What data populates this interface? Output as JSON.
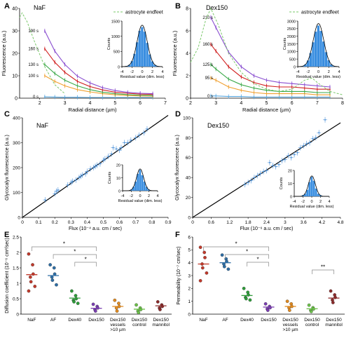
{
  "figure": {
    "panels": [
      {
        "letter": "A",
        "name": "NaF"
      },
      {
        "letter": "B",
        "name": "Dex150"
      },
      {
        "letter": "C",
        "name": "NaF"
      },
      {
        "letter": "D",
        "name": "Dex150"
      },
      {
        "letter": "E",
        "name": ""
      },
      {
        "letter": "F",
        "name": ""
      }
    ]
  },
  "colors": {
    "t0": "#5aa8e0",
    "t1": "#f0a030",
    "t2": "#3aa848",
    "t3": "#d02020",
    "t4": "#8a4fd0",
    "endfeet": "#7ac86a",
    "hist": "#3a8ee0",
    "fit": "#000000",
    "points": "#4a90d8"
  },
  "chart_data": [
    {
      "type": "line",
      "panel": "A",
      "title": "NaF",
      "xlabel": "Radial distance (µm)",
      "ylabel": "Fluorescence (a.u.)",
      "xlim": [
        1.2,
        7
      ],
      "ylim": [
        0,
        40
      ],
      "xticks": [
        2,
        3,
        4,
        5,
        6,
        7
      ],
      "yticks": [
        0,
        10,
        20,
        30,
        40
      ],
      "legend": "astrocyte endfeet",
      "legend_position": "top-right",
      "series": [
        {
          "name": "0 s",
          "x": [
            2.2,
            2.6,
            3.0,
            3.5,
            4.0,
            4.5,
            5.0,
            5.5,
            6.0,
            6.5
          ],
          "y": [
            0.6,
            0.5,
            0.4,
            0.4,
            0.3,
            0.3,
            0.3,
            0.3,
            0.3,
            0.3
          ]
        },
        {
          "name": "100 s",
          "x": [
            2.2,
            2.6,
            3.0,
            3.5,
            4.0,
            4.5,
            5.0,
            5.5,
            6.0,
            6.5
          ],
          "y": [
            10,
            7.5,
            5.5,
            3.8,
            2.8,
            2.0,
            1.5,
            1.2,
            1.0,
            0.9
          ]
        },
        {
          "name": "130 s",
          "x": [
            2.2,
            2.6,
            3.0,
            3.5,
            4.0,
            4.5,
            5.0,
            5.5,
            6.0,
            6.5
          ],
          "y": [
            15,
            11,
            8,
            5.5,
            3.8,
            2.7,
            2.0,
            1.6,
            1.3,
            1.2
          ]
        },
        {
          "name": "160 s",
          "x": [
            2.2,
            2.6,
            3.0,
            3.5,
            4.0,
            4.5,
            5.0,
            5.5,
            6.0,
            6.5
          ],
          "y": [
            22,
            16,
            11.5,
            7.5,
            5.2,
            3.7,
            2.7,
            2.2,
            1.8,
            1.7
          ]
        },
        {
          "name": "190 s",
          "x": [
            2.2,
            2.6,
            3.0,
            3.5,
            4.0,
            4.5,
            5.0,
            5.5,
            6.0,
            6.5
          ],
          "y": [
            30,
            21,
            15,
            9.8,
            6.8,
            4.7,
            3.4,
            2.6,
            2.2,
            2.0
          ]
        },
        {
          "name": "astrocyte endfeet",
          "x": [
            1.2,
            1.3,
            1.5,
            1.8,
            2.2,
            2.6,
            3.0
          ],
          "y": [
            36,
            38,
            34,
            25,
            14,
            6,
            2
          ]
        }
      ],
      "inset": {
        "type": "histogram",
        "xlabel": "Residual value (dim. less)",
        "ylabel": "Counts",
        "xlim": [
          -4,
          4
        ],
        "ylim": [
          0,
          1500
        ],
        "xticks": [
          -4,
          -2,
          0,
          2,
          4
        ],
        "yticks": [
          0,
          500,
          1000,
          1500
        ],
        "bins": [
          -3,
          -2.5,
          -2,
          -1.5,
          -1,
          -0.5,
          0,
          0.5,
          1,
          1.5,
          2,
          2.5,
          3
        ],
        "counts": [
          20,
          60,
          180,
          420,
          800,
          1180,
          1300,
          1150,
          780,
          400,
          170,
          60,
          20
        ]
      }
    },
    {
      "type": "line",
      "panel": "B",
      "title": "Dex150",
      "xlabel": "Radial distance (µm)",
      "ylabel": "Fluorescence (a.u.)",
      "xlim": [
        2,
        8
      ],
      "ylim": [
        0,
        8
      ],
      "xticks": [
        2,
        3,
        4,
        5,
        6,
        7,
        8
      ],
      "yticks": [
        0,
        2,
        4,
        6,
        8
      ],
      "legend": "astrocyte endfeet",
      "legend_position": "top-right",
      "series": [
        {
          "name": "0 s",
          "x": [
            2.8,
            3.0,
            3.5,
            4.0,
            4.5,
            5.0,
            5.5,
            6.0,
            6.5,
            7.0,
            7.5
          ],
          "y": [
            0.2,
            0.2,
            0.15,
            0.15,
            0.1,
            0.1,
            0.1,
            0.1,
            0.1,
            0.1,
            0.1
          ]
        },
        {
          "name": "95 s",
          "x": [
            2.8,
            3.0,
            3.5,
            4.0,
            4.5,
            5.0,
            5.5,
            6.0,
            6.5,
            7.0,
            7.5
          ],
          "y": [
            1.8,
            1.6,
            1.0,
            0.7,
            0.5,
            0.4,
            0.4,
            0.4,
            0.4,
            0.3,
            0.3
          ]
        },
        {
          "name": "125 s",
          "x": [
            2.8,
            3.0,
            3.5,
            4.0,
            4.5,
            5.0,
            5.5,
            6.0,
            6.5,
            7.0,
            7.5
          ],
          "y": [
            3.0,
            2.6,
            1.7,
            1.2,
            0.9,
            0.7,
            0.6,
            0.6,
            0.6,
            0.5,
            0.5
          ]
        },
        {
          "name": "160 s",
          "x": [
            2.8,
            3.0,
            3.5,
            4.0,
            4.5,
            5.0,
            5.5,
            6.0,
            6.5,
            7.0,
            7.5
          ],
          "y": [
            4.8,
            4.2,
            2.8,
            1.9,
            1.4,
            1.1,
            1.0,
            1.0,
            0.9,
            0.8,
            0.8
          ]
        },
        {
          "name": "210 s",
          "x": [
            2.8,
            3.0,
            3.5,
            4.0,
            4.5,
            5.0,
            5.5,
            6.0,
            6.5,
            7.0,
            7.5
          ],
          "y": [
            7.2,
            6.3,
            4.1,
            2.8,
            2.0,
            1.6,
            1.4,
            1.3,
            1.2,
            1.1,
            1.0
          ]
        },
        {
          "name": "astrocyte endfeet",
          "x": [
            2.0,
            2.3,
            2.6,
            2.8,
            3.1,
            3.5,
            4.0,
            4.5,
            5.0,
            5.5,
            6.0,
            6.5,
            6.8,
            7.0,
            7.5,
            8.0
          ],
          "y": [
            3.2,
            4.5,
            7.0,
            8.2,
            6.5,
            4.0,
            2.3,
            1.3,
            0.8,
            0.6,
            0.8,
            1.6,
            1.8,
            1.4,
            0.6,
            0.3
          ]
        }
      ],
      "inset": {
        "type": "histogram",
        "xlabel": "Residual value (dim. less)",
        "ylabel": "Counts",
        "xlim": [
          -4,
          4
        ],
        "ylim": [
          0,
          3000
        ],
        "xticks": [
          -4,
          -2,
          0,
          2,
          4
        ],
        "yticks": [
          0,
          500,
          1000,
          1500,
          2000,
          2500,
          3000
        ],
        "bins": [
          -3,
          -2.5,
          -2,
          -1.5,
          -1,
          -0.5,
          0,
          0.5,
          1,
          1.5,
          2,
          2.5,
          3
        ],
        "counts": [
          40,
          150,
          400,
          900,
          1600,
          2300,
          2700,
          2350,
          1650,
          950,
          420,
          150,
          40
        ]
      }
    },
    {
      "type": "scatter",
      "panel": "C",
      "title": "NaF",
      "xlabel": "Flux (10⁻⁴ a.u. cm / sec)",
      "ylabel": "Glycocalyx fluorescence (a.u.)",
      "xlim": [
        0,
        0.9
      ],
      "ylim": [
        0,
        400
      ],
      "xticks": [
        0,
        0.1,
        0.2,
        0.3,
        0.4,
        0.5,
        0.6,
        0.7,
        0.8,
        0.9
      ],
      "yticks": [
        0,
        100,
        200,
        300,
        400
      ],
      "fit_line": {
        "x": [
          0,
          0.9
        ],
        "y": [
          0,
          410
        ]
      },
      "points": {
        "x": [
          0.14,
          0.2,
          0.21,
          0.22,
          0.28,
          0.3,
          0.31,
          0.33,
          0.35,
          0.36,
          0.37,
          0.39,
          0.4,
          0.42,
          0.44,
          0.45,
          0.46,
          0.48,
          0.5,
          0.51,
          0.53,
          0.55,
          0.56,
          0.58,
          0.6,
          0.61,
          0.63,
          0.65,
          0.67,
          0.7,
          0.72,
          0.75,
          0.77
        ],
        "y": [
          70,
          95,
          105,
          110,
          130,
          140,
          145,
          150,
          160,
          165,
          170,
          175,
          185,
          195,
          200,
          205,
          210,
          215,
          230,
          235,
          245,
          255,
          280,
          275,
          270,
          280,
          300,
          300,
          310,
          320,
          330,
          340,
          355
        ]
      },
      "inset": {
        "type": "histogram",
        "xlabel": "Residual value (dim. less)",
        "ylabel": "Counts",
        "xlim": [
          -4,
          4
        ],
        "ylim": [
          0,
          20
        ],
        "xticks": [
          -4,
          -2,
          0,
          2,
          4
        ],
        "yticks": [
          0,
          10,
          20
        ],
        "bins": [
          -2,
          -1.5,
          -1,
          -0.5,
          0,
          0.5,
          1,
          1.5,
          2
        ],
        "counts": [
          1,
          3,
          7,
          13,
          16,
          12,
          7,
          3,
          1
        ]
      }
    },
    {
      "type": "scatter",
      "panel": "D",
      "title": "Dex150",
      "xlabel": "Flux (10⁻⁶ a.u. cm / sec)",
      "ylabel": "Glycocalyx fluorescence (a.u.)",
      "xlim": [
        0,
        4.8
      ],
      "ylim": [
        0,
        100
      ],
      "xticks": [
        0,
        0.6,
        1.2,
        1.8,
        2.4,
        3.0,
        3.6,
        4.2,
        4.8
      ],
      "yticks": [
        0,
        20,
        40,
        60,
        80,
        100
      ],
      "fit_line": {
        "x": [
          0,
          4.8
        ],
        "y": [
          0,
          95
        ]
      },
      "points": {
        "x": [
          1.7,
          1.8,
          1.9,
          2.0,
          2.1,
          2.2,
          2.3,
          2.4,
          2.5,
          2.6,
          2.7,
          2.8,
          2.9,
          3.0,
          3.1,
          3.2,
          3.3,
          3.4,
          3.5,
          3.6,
          3.7,
          3.8,
          3.9,
          4.0,
          4.1,
          4.3
        ],
        "y": [
          33,
          35,
          37,
          40,
          42,
          44,
          46,
          47,
          55,
          52,
          51,
          53,
          57,
          58,
          62,
          60,
          63,
          65,
          70,
          72,
          74,
          75,
          79,
          80,
          85,
          98
        ]
      },
      "inset": {
        "type": "histogram",
        "xlabel": "Residual value (dim. less)",
        "ylabel": "Counts",
        "xlim": [
          -4,
          4
        ],
        "ylim": [
          0,
          20
        ],
        "xticks": [
          -4,
          -2,
          0,
          2,
          4
        ],
        "yticks": [
          0,
          10,
          20
        ],
        "bins": [
          -2,
          -1.5,
          -1,
          -0.5,
          0,
          0.5,
          1,
          1.5,
          2
        ],
        "counts": [
          1,
          2,
          5,
          11,
          15,
          12,
          6,
          2,
          1
        ]
      }
    },
    {
      "type": "scatter",
      "panel": "E",
      "ylabel": "Diffusion coefficient (10⁻⁶ cm²/sec)",
      "ylim": [
        0,
        2.5
      ],
      "yticks": [
        0,
        0.5,
        1.0,
        1.5,
        2.0,
        2.5
      ],
      "categories": [
        "NaF",
        "AF",
        "Dex40",
        "Dex150",
        "Dex150\nvessels\n>10 µm",
        "Dex150\ncontrol",
        "Dex150\nmannitol"
      ],
      "colors": [
        "#c0392b",
        "#2e6da4",
        "#2e9b3a",
        "#7a3fb0",
        "#e08a20",
        "#6cc04a",
        "#8b2a2a"
      ],
      "means": [
        1.28,
        1.25,
        0.52,
        0.19,
        0.25,
        0.16,
        0.27
      ],
      "points": [
        [
          1.95,
          1.6,
          1.3,
          1.2,
          1.05,
          0.9,
          0.75
        ],
        [
          1.6,
          1.5,
          1.3,
          1.2,
          1.1,
          0.95
        ],
        [
          0.75,
          0.6,
          0.5,
          0.45,
          0.4,
          0.35
        ],
        [
          0.32,
          0.25,
          0.2,
          0.15,
          0.1
        ],
        [
          0.45,
          0.35,
          0.25,
          0.2,
          0.1
        ],
        [
          0.3,
          0.2,
          0.15,
          0.1,
          0.05
        ],
        [
          0.4,
          0.3,
          0.25,
          0.2,
          0.15
        ]
      ],
      "significance": [
        {
          "from": 0,
          "to": 3,
          "label": "*"
        },
        {
          "from": 1,
          "to": 3,
          "label": "*"
        },
        {
          "from": 2,
          "to": 3,
          "label": "*"
        }
      ]
    },
    {
      "type": "scatter",
      "panel": "F",
      "ylabel": "Permeability (10⁻⁷ cm/sec)",
      "ylim": [
        0,
        6
      ],
      "yticks": [
        0,
        1,
        2,
        3,
        4,
        5,
        6
      ],
      "categories": [
        "NaF",
        "AF",
        "Dex40",
        "Dex150",
        "Dex150\nvessels\n>10 µm",
        "Dex150\ncontrol",
        "Dex150\nmannitol"
      ],
      "colors": [
        "#c0392b",
        "#2e6da4",
        "#2e9b3a",
        "#7a3fb0",
        "#e08a20",
        "#6cc04a",
        "#8b2a2a"
      ],
      "means": [
        3.9,
        4.0,
        1.45,
        0.55,
        0.6,
        0.42,
        1.25
      ],
      "points": [
        [
          5.2,
          4.8,
          4.4,
          3.9,
          3.6,
          3.2,
          2.6
        ],
        [
          4.6,
          4.3,
          4.1,
          3.9,
          3.7,
          3.5
        ],
        [
          2.0,
          1.7,
          1.5,
          1.3,
          1.2,
          1.1
        ],
        [
          0.8,
          0.6,
          0.5,
          0.4,
          0.3
        ],
        [
          1.0,
          0.8,
          0.6,
          0.5,
          0.3
        ],
        [
          0.7,
          0.5,
          0.4,
          0.3,
          0.2
        ],
        [
          1.8,
          1.5,
          1.3,
          1.1,
          0.9
        ]
      ],
      "significance": [
        {
          "from": 0,
          "to": 3,
          "label": "*"
        },
        {
          "from": 1,
          "to": 3,
          "label": "*"
        },
        {
          "from": 2,
          "to": 3,
          "label": "*"
        },
        {
          "from": 5,
          "to": 6,
          "label": "**"
        }
      ]
    }
  ]
}
